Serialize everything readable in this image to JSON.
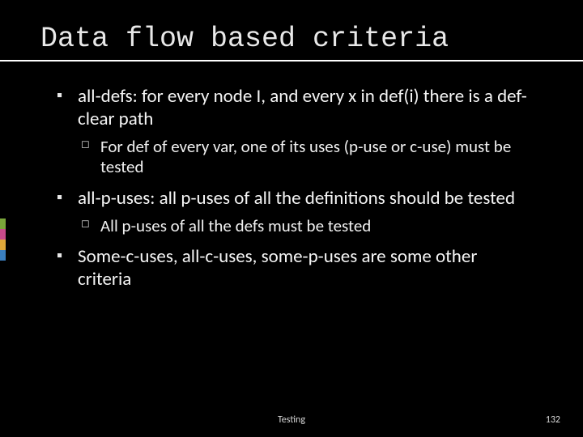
{
  "title": "Data flow based criteria",
  "bullets": [
    {
      "text": "all-defs: for every node I, and every x in def(i) there is a def-clear path",
      "children": [
        {
          "text": "For def of every var, one of its uses (p-use or c-use) must be tested"
        }
      ]
    },
    {
      "text": "all-p-uses: all p-uses of all the definitions should be tested",
      "children": [
        {
          "text": "All p-uses of all the defs must be tested"
        }
      ]
    },
    {
      "text": "Some-c-uses, all-c-uses, some-p-uses are some other criteria",
      "children": []
    }
  ],
  "footer": {
    "label": "Testing",
    "page": "132"
  },
  "accent_colors": [
    "#7aa53a",
    "#c84a8a",
    "#e0a83a",
    "#3a7fbf"
  ],
  "accent_seg_height": 13,
  "colors": {
    "background": "#000000",
    "title": "#e8e8e8",
    "text": "#f5f5f5",
    "underline": "#ffffff",
    "footer": "#d8d8d8"
  },
  "fonts": {
    "title_family": "Consolas",
    "title_size": 35,
    "body_family": "Calibri",
    "lvl1_size": 23,
    "lvl2_size": 21,
    "footer_size": 12
  }
}
